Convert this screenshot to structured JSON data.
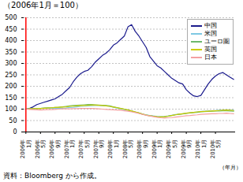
{
  "chart_data": {
    "type": "line",
    "title": "（2006年1月＝100）",
    "xlabel": "（年月）",
    "source": "資料：Bloomberg から作成。",
    "categories": [
      "2006年\n1月",
      null,
      null,
      null,
      "2006年\n5月",
      null,
      null,
      null,
      "2006年\n9月",
      null,
      null,
      null,
      "2007年\n1月",
      null,
      null,
      null,
      "2007年\n5月",
      null,
      null,
      null,
      "2007年\n9月",
      null,
      null,
      null,
      "2008年\n1月",
      null,
      null,
      null,
      "2008年\n5月",
      null,
      null,
      null,
      "2008年\n9月",
      null,
      null,
      null,
      "2009年\n1月",
      null,
      null,
      null,
      "2009年\n5月",
      null,
      null,
      null,
      "2009年\n9月",
      null,
      null,
      null,
      "2010年\n1月",
      null,
      null,
      null,
      "2010年\n5月",
      null,
      null,
      null,
      null,
      null
    ],
    "series": [
      {
        "name": "中国",
        "color": "#1a1a8c",
        "values": [
          100,
          103,
          110,
          120,
          125,
          130,
          135,
          140,
          145,
          155,
          165,
          180,
          195,
          220,
          240,
          255,
          265,
          270,
          285,
          305,
          320,
          335,
          345,
          360,
          380,
          390,
          405,
          420,
          460,
          470,
          440,
          420,
          395,
          370,
          330,
          310,
          290,
          280,
          265,
          250,
          235,
          225,
          215,
          210,
          185,
          170,
          158,
          155,
          160,
          185,
          210,
          230,
          245,
          255,
          260,
          250,
          240,
          230
        ]
      },
      {
        "name": "米国",
        "color": "#7ec8e3",
        "values": [
          100,
          101,
          102,
          103,
          103,
          104,
          105,
          104,
          103,
          103,
          104,
          105,
          107,
          108,
          110,
          112,
          113,
          114,
          115,
          116,
          116,
          115,
          114,
          112,
          108,
          105,
          101,
          98,
          95,
          92,
          88,
          83,
          78,
          75,
          72,
          70,
          68,
          67,
          68,
          70,
          73,
          76,
          78,
          80,
          82,
          84,
          86,
          88,
          90,
          91,
          92,
          93,
          94,
          95,
          96,
          97,
          96,
          95
        ]
      },
      {
        "name": "ユーロ圏",
        "color": "#6db86d",
        "values": [
          100,
          101,
          102,
          103,
          103,
          105,
          106,
          106,
          107,
          108,
          110,
          112,
          114,
          116,
          117,
          118,
          119,
          120,
          120,
          119,
          118,
          117,
          116,
          114,
          110,
          107,
          103,
          100,
          96,
          92,
          87,
          83,
          78,
          74,
          71,
          69,
          67,
          66,
          67,
          69,
          72,
          75,
          77,
          79,
          81,
          83,
          85,
          86,
          88,
          89,
          90,
          91,
          92,
          92,
          93,
          93,
          92,
          91
        ]
      },
      {
        "name": "英国",
        "color": "#cccc00",
        "values": [
          100,
          101,
          102,
          102,
          103,
          104,
          105,
          106,
          107,
          108,
          109,
          110,
          112,
          113,
          114,
          115,
          116,
          117,
          118,
          118,
          117,
          116,
          114,
          112,
          109,
          106,
          103,
          100,
          96,
          92,
          88,
          83,
          78,
          74,
          71,
          69,
          67,
          66,
          67,
          69,
          72,
          75,
          78,
          80,
          82,
          84,
          86,
          88,
          89,
          90,
          91,
          92,
          93,
          94,
          95,
          96,
          95,
          94
        ]
      },
      {
        "name": "日本",
        "color": "#f4a0a0",
        "values": [
          100,
          99,
          98,
          97,
          96,
          97,
          98,
          98,
          99,
          100,
          101,
          101,
          101,
          102,
          102,
          103,
          103,
          103,
          103,
          102,
          101,
          100,
          99,
          98,
          97,
          96,
          95,
          93,
          91,
          88,
          85,
          81,
          77,
          73,
          70,
          67,
          64,
          62,
          61,
          62,
          63,
          65,
          67,
          69,
          71,
          72,
          74,
          75,
          77,
          78,
          79,
          80,
          80,
          81,
          81,
          82,
          81,
          80
        ]
      }
    ],
    "ylim": [
      0,
      500
    ],
    "yticks": [
      0,
      50,
      100,
      150,
      200,
      250,
      300,
      350,
      400,
      450,
      500
    ],
    "grid": true,
    "legend": "upper right"
  }
}
